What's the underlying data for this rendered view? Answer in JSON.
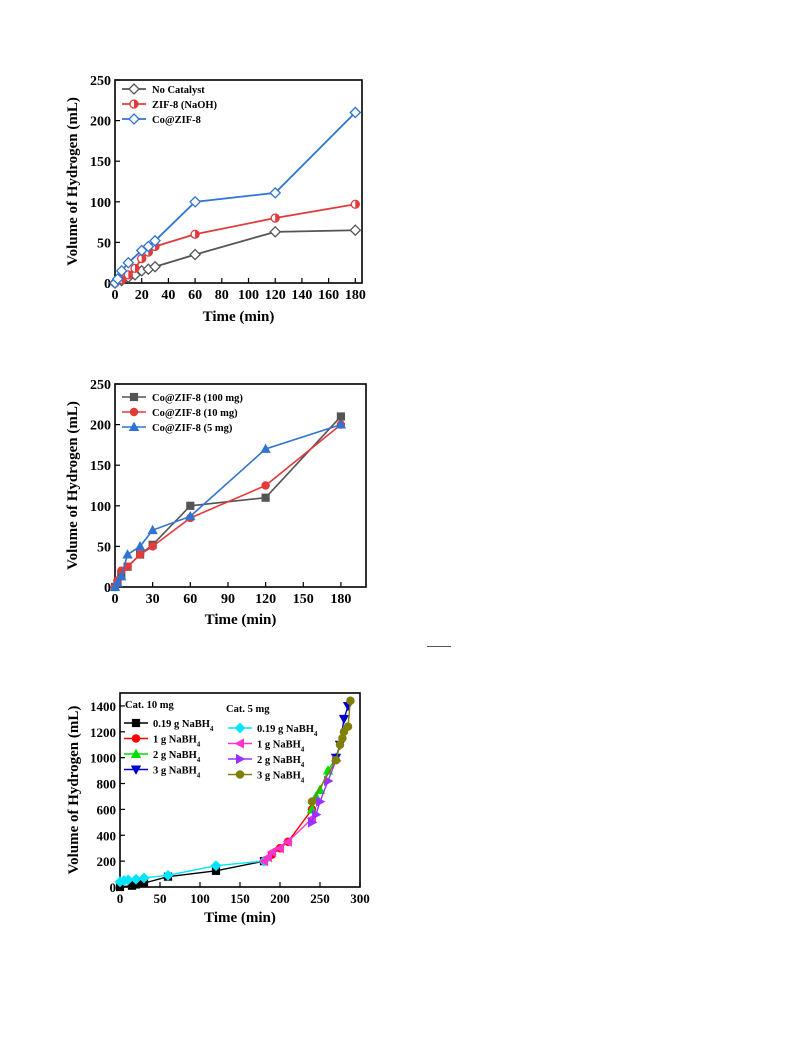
{
  "chart_data": [
    {
      "type": "line",
      "xlabel": "Time (min)",
      "ylabel": "Volume of Hydrogen (mL)",
      "xlim": [
        0,
        185
      ],
      "ylim": [
        0,
        250
      ],
      "xticks": [
        0,
        20,
        40,
        60,
        80,
        100,
        120,
        140,
        160,
        180
      ],
      "yticks": [
        0,
        50,
        100,
        150,
        200,
        250
      ],
      "legend_position": "top-left",
      "series": [
        {
          "name": "No Catalyst",
          "color": "#555555",
          "marker": "diamond",
          "fill": "open",
          "points": [
            [
              0,
              0
            ],
            [
              5,
              3
            ],
            [
              10,
              7
            ],
            [
              15,
              10
            ],
            [
              20,
              15
            ],
            [
              25,
              17
            ],
            [
              30,
              20
            ],
            [
              60,
              35
            ],
            [
              120,
              63
            ],
            [
              180,
              65
            ]
          ]
        },
        {
          "name": "ZIF-8 (NaOH)",
          "color": "#e23b3b",
          "marker": "circle",
          "fill": "half",
          "points": [
            [
              0,
              0
            ],
            [
              5,
              4
            ],
            [
              10,
              10
            ],
            [
              15,
              18
            ],
            [
              20,
              30
            ],
            [
              25,
              38
            ],
            [
              30,
              45
            ],
            [
              60,
              60
            ],
            [
              120,
              80
            ],
            [
              180,
              97
            ]
          ]
        },
        {
          "name": "Co@ZIF-8",
          "color": "#2f74d0",
          "marker": "diamond",
          "fill": "open",
          "points": [
            [
              0,
              0
            ],
            [
              2,
              5
            ],
            [
              5,
              15
            ],
            [
              10,
              25
            ],
            [
              20,
              40
            ],
            [
              25,
              45
            ],
            [
              30,
              52
            ],
            [
              60,
              100
            ],
            [
              120,
              111
            ],
            [
              180,
              210
            ]
          ]
        }
      ]
    },
    {
      "type": "line",
      "xlabel": "Time (min)",
      "ylabel": "Volume of Hydrogen (mL)",
      "xlim": [
        0,
        200
      ],
      "ylim": [
        0,
        250
      ],
      "xticks": [
        0,
        30,
        60,
        90,
        120,
        150,
        180
      ],
      "yticks": [
        0,
        50,
        100,
        150,
        200,
        250
      ],
      "legend_position": "top-left",
      "series": [
        {
          "name": "Co@ZIF-8 (100 mg)",
          "color": "#555555",
          "marker": "square",
          "points": [
            [
              0,
              0
            ],
            [
              2,
              5
            ],
            [
              5,
              15
            ],
            [
              10,
              25
            ],
            [
              20,
              40
            ],
            [
              30,
              52
            ],
            [
              60,
              100
            ],
            [
              120,
              110
            ],
            [
              180,
              210
            ]
          ]
        },
        {
          "name": "Co@ZIF-8 (10 mg)",
          "color": "#e23b3b",
          "marker": "circle",
          "points": [
            [
              0,
              0
            ],
            [
              2,
              8
            ],
            [
              5,
              20
            ],
            [
              10,
              25
            ],
            [
              20,
              40
            ],
            [
              30,
              50
            ],
            [
              60,
              85
            ],
            [
              120,
              125
            ],
            [
              180,
              200
            ]
          ]
        },
        {
          "name": "Co@ZIF-8 (5 mg)",
          "color": "#2f74d0",
          "marker": "triangle-up",
          "points": [
            [
              0,
              0
            ],
            [
              2,
              5
            ],
            [
              5,
              13
            ],
            [
              10,
              40
            ],
            [
              20,
              50
            ],
            [
              30,
              70
            ],
            [
              60,
              87
            ],
            [
              120,
              170
            ],
            [
              180,
              200
            ]
          ]
        }
      ]
    },
    {
      "type": "line",
      "xlabel": "Time (min)",
      "ylabel": "Volume of Hydrogen (mL)",
      "xlim": [
        0,
        300
      ],
      "ylim": [
        0,
        1500
      ],
      "xticks": [
        0,
        50,
        100,
        150,
        200,
        250,
        300
      ],
      "yticks": [
        0,
        200,
        400,
        600,
        800,
        1000,
        1200,
        1400
      ],
      "legend_position": "top-left",
      "legend_group_titles": [
        "Cat. 10 mg",
        "Cat. 5 mg"
      ],
      "series": [
        {
          "name": "0.19 g NaBH4",
          "group": 0,
          "color": "#000000",
          "marker": "square",
          "points": [
            [
              0,
              0
            ],
            [
              15,
              10
            ],
            [
              20,
              20
            ],
            [
              30,
              30
            ],
            [
              60,
              80
            ],
            [
              120,
              125
            ],
            [
              180,
              200
            ]
          ]
        },
        {
          "name": "1 g NaBH4",
          "group": 0,
          "color": "#ff0000",
          "marker": "circle",
          "points": [
            [
              180,
              200
            ],
            [
              190,
              250
            ],
            [
              200,
              300
            ],
            [
              210,
              350
            ],
            [
              240,
              600
            ]
          ]
        },
        {
          "name": "2 g NaBH4",
          "group": 0,
          "color": "#00dd00",
          "marker": "triangle-up",
          "points": [
            [
              240,
              600
            ],
            [
              245,
              700
            ],
            [
              250,
              750
            ],
            [
              260,
              900
            ],
            [
              270,
              1000
            ]
          ]
        },
        {
          "name": "3 g NaBH4",
          "group": 0,
          "color": "#0000cc",
          "marker": "triangle-down",
          "points": [
            [
              270,
              1000
            ],
            [
              275,
              1100
            ],
            [
              280,
              1300
            ],
            [
              285,
              1400
            ]
          ]
        },
        {
          "name": "0.19 g NaBH4",
          "group": 1,
          "color": "#00e5ff",
          "marker": "diamond",
          "points": [
            [
              0,
              40
            ],
            [
              5,
              50
            ],
            [
              10,
              55
            ],
            [
              20,
              60
            ],
            [
              30,
              70
            ],
            [
              60,
              90
            ],
            [
              120,
              165
            ],
            [
              180,
              200
            ]
          ]
        },
        {
          "name": "1 g NaBH4",
          "group": 1,
          "color": "#ff33cc",
          "marker": "triangle-left",
          "points": [
            [
              180,
              200
            ],
            [
              185,
              230
            ],
            [
              190,
              270
            ],
            [
              200,
              300
            ],
            [
              210,
              350
            ],
            [
              240,
              530
            ]
          ]
        },
        {
          "name": "2 g NaBH4",
          "group": 1,
          "color": "#9b30ff",
          "marker": "triangle-right",
          "points": [
            [
              240,
              500
            ],
            [
              245,
              560
            ],
            [
              250,
              660
            ],
            [
              260,
              820
            ],
            [
              270,
              980
            ]
          ]
        },
        {
          "name": "3 g NaBH4",
          "group": 1,
          "color": "#808000",
          "marker": "circle",
          "points": [
            [
              240,
              660
            ],
            [
              270,
              980
            ],
            [
              275,
              1100
            ],
            [
              278,
              1150
            ],
            [
              280,
              1200
            ],
            [
              285,
              1240
            ],
            [
              288,
              1440
            ]
          ]
        }
      ]
    }
  ]
}
